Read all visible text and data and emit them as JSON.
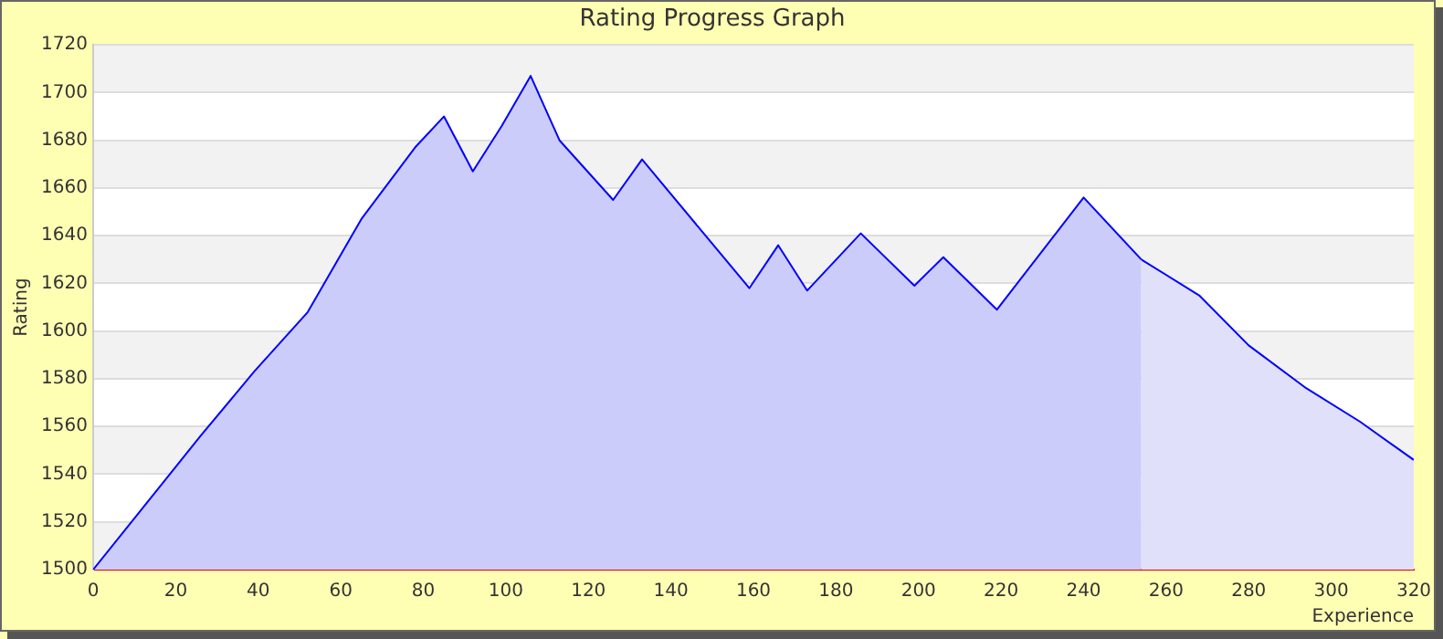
{
  "chart_data": {
    "type": "area",
    "title": "Rating Progress Graph",
    "xlabel": "Experience",
    "ylabel": "Rating",
    "series": [
      {
        "color": "#ccccfa",
        "x": [
          0,
          13,
          26,
          39,
          52,
          65,
          78,
          85,
          92,
          99,
          106,
          113,
          126,
          133,
          159,
          166,
          173,
          186,
          199,
          206,
          219,
          240,
          254
        ],
        "values": [
          1500,
          1528,
          1556,
          1583,
          1608,
          1647,
          1677,
          1690,
          1667,
          1686,
          1707,
          1680,
          1655,
          1672,
          1618,
          1636,
          1617,
          1641,
          1619,
          1631,
          1609,
          1656,
          1630
        ]
      },
      {
        "color": "#e0e0fa",
        "x": [
          254,
          268,
          280,
          294,
          307,
          320
        ],
        "values": [
          1630,
          1615,
          1594,
          1576,
          1562,
          1546
        ]
      }
    ],
    "xlim": [
      0,
      320
    ],
    "xticks": [
      0,
      20,
      40,
      60,
      80,
      100,
      120,
      140,
      160,
      180,
      200,
      220,
      240,
      260,
      280,
      300,
      320
    ],
    "ylim": [
      1500,
      1720
    ],
    "yticks": [
      1500,
      1520,
      1540,
      1560,
      1580,
      1600,
      1620,
      1640,
      1660,
      1680,
      1700,
      1720
    ],
    "grid": "y",
    "legend": false
  }
}
